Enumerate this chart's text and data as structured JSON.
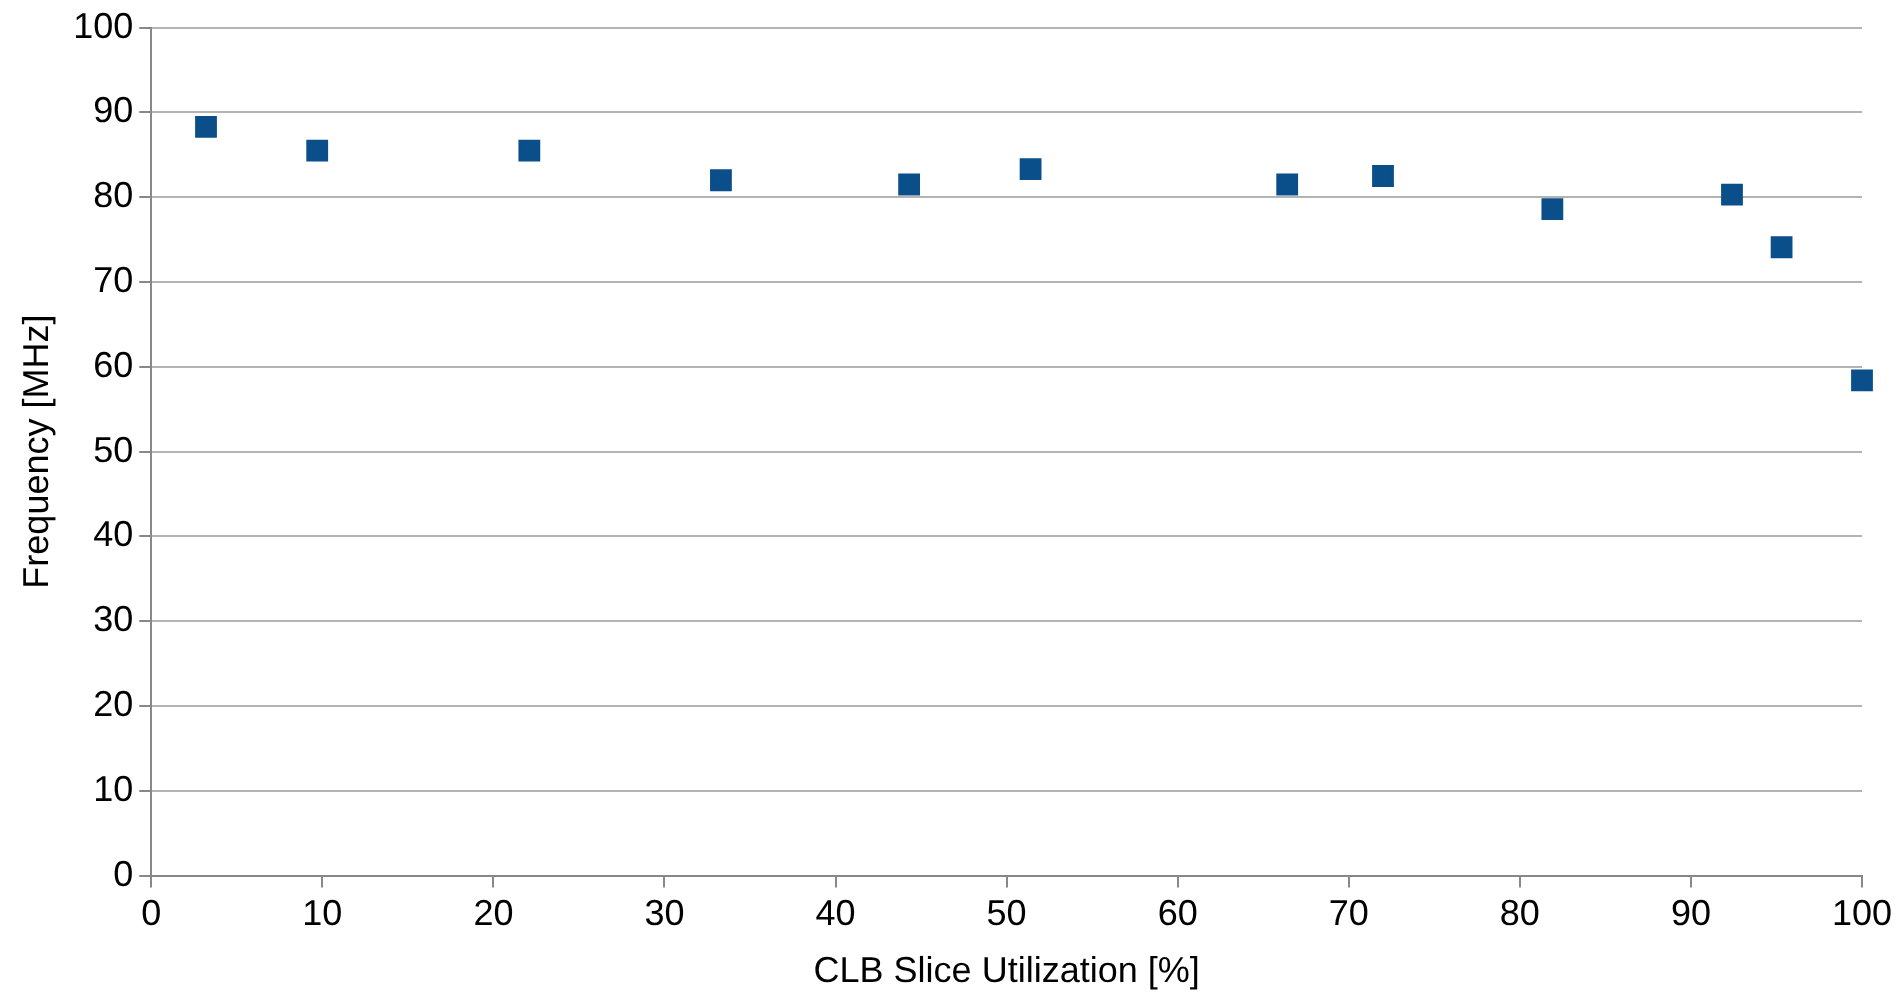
{
  "chart_data": {
    "type": "scatter",
    "xlabel": "CLB Slice Utilization [%]",
    "ylabel": "Frequency [MHz]",
    "x": [
      3.2,
      9.7,
      22.1,
      33.3,
      44.3,
      51.4,
      66.4,
      72.0,
      81.9,
      92.4,
      95.3,
      100
    ],
    "values": [
      88.3,
      85.5,
      85.5,
      82.0,
      81.5,
      83.3,
      81.5,
      82.5,
      78.6,
      80.3,
      74.1,
      58.4
    ],
    "color": "#0b4f8a",
    "marker": "square",
    "xlim": [
      0,
      100
    ],
    "xticks": [
      0,
      10,
      20,
      30,
      40,
      50,
      60,
      70,
      80,
      90,
      100
    ],
    "ylim": [
      0,
      100
    ],
    "yticks": [
      0,
      10,
      20,
      30,
      40,
      50,
      60,
      70,
      80,
      90,
      100
    ],
    "grid": "y",
    "legend": false
  }
}
